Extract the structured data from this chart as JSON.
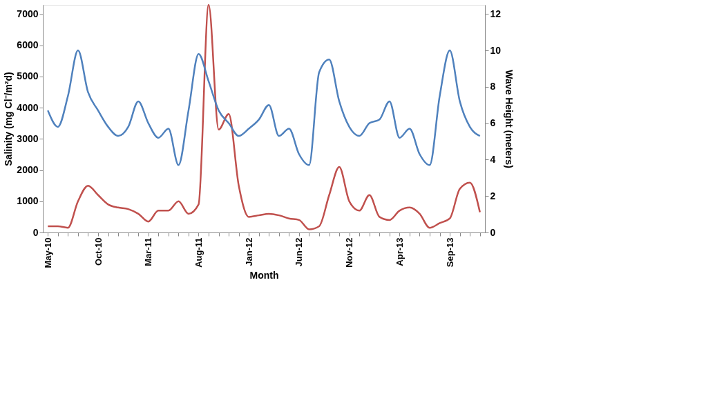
{
  "chart_data": {
    "type": "line",
    "xlabel": "Month",
    "ylabel": "Salinity (mg Cl⁻/m²d)",
    "y2label": "Wave Height (meters)",
    "categories": [
      "May-10",
      null,
      null,
      null,
      null,
      "Oct-10",
      null,
      null,
      null,
      null,
      "Mar-11",
      null,
      null,
      null,
      null,
      "Aug-11",
      null,
      null,
      null,
      null,
      "Jan-12",
      null,
      null,
      null,
      null,
      "Jun-12",
      null,
      null,
      null,
      null,
      "Nov-12",
      null,
      null,
      null,
      null,
      "Apr-13",
      null,
      null,
      null,
      null,
      "Sep-13",
      null,
      null,
      null
    ],
    "series": [
      {
        "color": "#c0504d",
        "values": [
          200,
          200,
          150,
          1000,
          1500,
          1200,
          900,
          800,
          750,
          600,
          350,
          700,
          700,
          1000,
          600,
          900,
          7300,
          3300,
          3800,
          1500,
          500,
          550,
          600,
          550,
          450,
          400,
          100,
          200,
          1200,
          2100,
          1000,
          700,
          1200,
          500,
          400,
          700,
          800,
          600,
          150,
          300,
          450,
          1400,
          1600,
          650
        ]
      },
      {
        "color": "#4f81bd",
        "axis": "y2",
        "values": [
          6.7,
          5.8,
          7.5,
          10,
          7.7,
          6.7,
          5.8,
          5.3,
          5.8,
          7.2,
          6,
          5.2,
          5.7,
          3.7,
          6.7,
          9.8,
          8.3,
          6.7,
          6,
          5.3,
          5.7,
          6.2,
          7,
          5.3,
          5.7,
          4.3,
          3.7,
          8.8,
          9.5,
          7.2,
          5.8,
          5.3,
          6,
          6.2,
          7.2,
          5.2,
          5.7,
          4.3,
          3.7,
          7.5,
          10,
          7.2,
          5.8,
          5.3
        ]
      }
    ],
    "ylim": [
      0,
      7300
    ],
    "yticks": [
      0,
      1000,
      2000,
      3000,
      4000,
      5000,
      6000,
      7000
    ],
    "y2lim": [
      0,
      12.5
    ],
    "y2ticks": [
      0,
      2,
      4,
      6,
      8,
      10,
      12
    ],
    "grid": false,
    "marker": "none",
    "line_style": "solid"
  }
}
